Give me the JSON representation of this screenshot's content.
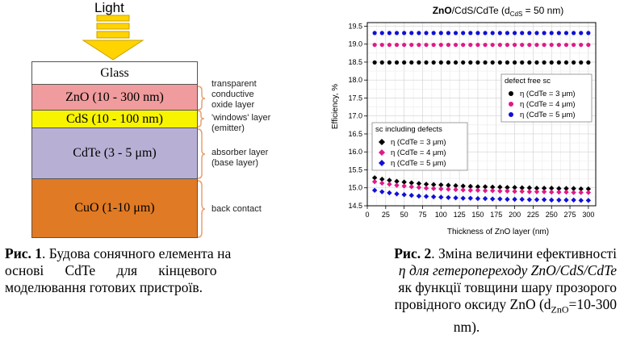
{
  "figure1": {
    "light_label": "Light",
    "layers": [
      {
        "label": "Glass",
        "color": "#ffffff"
      },
      {
        "label": "ZnO (10 - 300 nm)",
        "color": "#f09b9d"
      },
      {
        "label": "CdS (10 - 100 nm)",
        "color": "#f8f400"
      },
      {
        "label": "CdTe (3 - 5 μm)",
        "color": "#b8b0d4"
      },
      {
        "label": "CuO (1-10 μm)",
        "color": "#e07a24"
      }
    ],
    "notes": {
      "tco": [
        "transparent",
        "conductive",
        "oxide layer"
      ],
      "window": [
        "'windows' layer",
        "(emitter)"
      ],
      "absorber": [
        "absorber layer",
        "(base layer)"
      ],
      "back": "back contact"
    },
    "caption": {
      "bold": "Рис. 1",
      "line1": ". Будова сонячного елемента на",
      "line2": "основі      CdTe      для      кінцевого",
      "line3": "моделювання готових пристроїв."
    }
  },
  "figure2": {
    "caption": {
      "bold": "Рис. 2",
      "line1": ". Зміна величини ефективності",
      "line2": "η для гетеропереходу ZnO/CdS/CdTe",
      "line3": "як функції товщини шару прозорого",
      "line4a": "провідного оксиду ZnO (d",
      "line4sub": "ZnO",
      "line4b": "=10-300",
      "line5": "nm)."
    }
  },
  "chart_data": {
    "type": "scatter",
    "title_pre": "ZnO",
    "title_post": "/CdS/CdTe (d",
    "title_sub": "CdS",
    "title_end": " = 50 nm)",
    "xlabel": "Thickness of ZnO layer (nm)",
    "ylabel": "Efficiency, %",
    "xlim": [
      0,
      310
    ],
    "ylim": [
      14.5,
      19.6
    ],
    "xticks": [
      0,
      25,
      50,
      75,
      100,
      125,
      150,
      175,
      200,
      225,
      250,
      275,
      300
    ],
    "yticks": [
      14.5,
      15.0,
      15.5,
      16.0,
      16.5,
      17.0,
      17.5,
      18.0,
      18.5,
      19.0,
      19.5
    ],
    "ytick_labels": [
      "14.5",
      "15.0",
      "15.5",
      "16.0",
      "16.5",
      "17.0",
      "17.5",
      "18.0",
      "18.5",
      "19.0",
      "19.5"
    ],
    "x": [
      10,
      20,
      30,
      40,
      50,
      60,
      70,
      80,
      90,
      100,
      110,
      120,
      130,
      140,
      150,
      160,
      170,
      180,
      190,
      200,
      210,
      220,
      230,
      240,
      250,
      260,
      270,
      280,
      290,
      300
    ],
    "grid": true,
    "legend_defect_free": {
      "title": "defect free sc",
      "entries": [
        "η (CdTe = 3 μm)",
        "η (CdTe = 4 μm)",
        "η (CdTe = 5 μm)"
      ]
    },
    "legend_defects": {
      "title": "sc including defects",
      "entries": [
        "η (CdTe = 3 μm)",
        "η (CdTe = 4 μm)",
        "η (CdTe = 5 μm)"
      ]
    },
    "series": [
      {
        "group": "defect free",
        "marker": "circle",
        "color": "#000000",
        "values": [
          18.49,
          18.49,
          18.49,
          18.49,
          18.49,
          18.49,
          18.49,
          18.49,
          18.49,
          18.49,
          18.49,
          18.49,
          18.49,
          18.49,
          18.49,
          18.49,
          18.49,
          18.49,
          18.49,
          18.49,
          18.49,
          18.49,
          18.49,
          18.49,
          18.49,
          18.49,
          18.49,
          18.49,
          18.49,
          18.49
        ]
      },
      {
        "group": "defect free",
        "marker": "circle",
        "color": "#e0198a",
        "values": [
          18.98,
          18.98,
          18.98,
          18.98,
          18.98,
          18.98,
          18.98,
          18.98,
          18.98,
          18.98,
          18.98,
          18.98,
          18.98,
          18.98,
          18.98,
          18.98,
          18.98,
          18.98,
          18.98,
          18.98,
          18.98,
          18.98,
          18.98,
          18.98,
          18.98,
          18.98,
          18.98,
          18.98,
          18.98,
          18.98
        ]
      },
      {
        "group": "defect free",
        "marker": "circle",
        "color": "#1010d8",
        "values": [
          19.31,
          19.31,
          19.31,
          19.31,
          19.31,
          19.31,
          19.31,
          19.31,
          19.31,
          19.31,
          19.31,
          19.31,
          19.31,
          19.31,
          19.31,
          19.31,
          19.31,
          19.31,
          19.31,
          19.31,
          19.31,
          19.31,
          19.31,
          19.31,
          19.31,
          19.31,
          19.31,
          19.31,
          19.31,
          19.31
        ]
      },
      {
        "group": "with defects",
        "marker": "diamond",
        "color": "#000000",
        "values": [
          15.28,
          15.24,
          15.21,
          15.18,
          15.16,
          15.14,
          15.12,
          15.1,
          15.09,
          15.08,
          15.07,
          15.06,
          15.05,
          15.04,
          15.03,
          15.03,
          15.02,
          15.02,
          15.01,
          15.01,
          15.0,
          15.0,
          14.99,
          14.99,
          14.99,
          14.98,
          14.98,
          14.98,
          14.97,
          14.97
        ]
      },
      {
        "group": "with defects",
        "marker": "diamond",
        "color": "#e0198a",
        "values": [
          15.17,
          15.13,
          15.1,
          15.07,
          15.05,
          15.03,
          15.01,
          14.99,
          14.98,
          14.97,
          14.96,
          14.95,
          14.94,
          14.93,
          14.93,
          14.92,
          14.92,
          14.91,
          14.91,
          14.9,
          14.9,
          14.89,
          14.89,
          14.89,
          14.88,
          14.88,
          14.88,
          14.87,
          14.87,
          14.87
        ]
      },
      {
        "group": "with defects",
        "marker": "diamond",
        "color": "#1010d8",
        "values": [
          14.93,
          14.89,
          14.86,
          14.83,
          14.81,
          14.79,
          14.77,
          14.76,
          14.75,
          14.74,
          14.73,
          14.72,
          14.71,
          14.71,
          14.7,
          14.7,
          14.69,
          14.69,
          14.68,
          14.68,
          14.68,
          14.67,
          14.67,
          14.67,
          14.66,
          14.66,
          14.66,
          14.66,
          14.65,
          14.65
        ]
      }
    ]
  }
}
